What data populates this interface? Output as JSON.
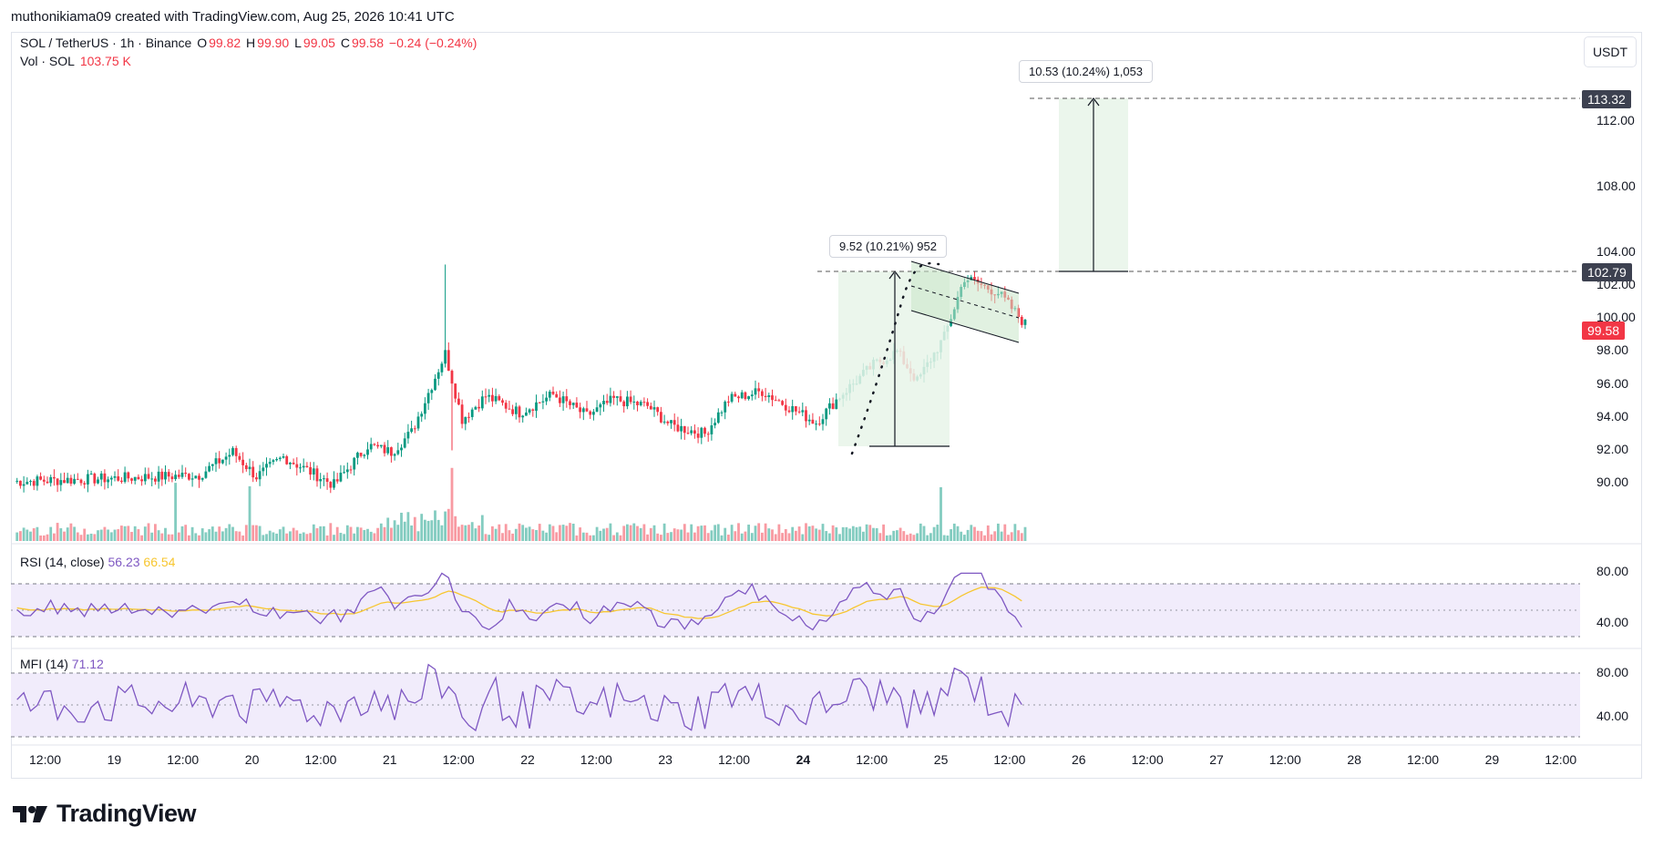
{
  "header": {
    "created_by": "muthonikiama09 created with TradingView.com, Aug 25, 2026 10:41 UTC"
  },
  "toolbar": {
    "currency": "USDT"
  },
  "legend": {
    "symbol": "SOL / TetherUS · 1h · Binance",
    "open_label": "O",
    "open": "99.82",
    "high_label": "H",
    "high": "99.90",
    "low_label": "L",
    "low": "99.05",
    "close_label": "C",
    "close": "99.58",
    "change": "−0.24 (−0.24%)",
    "vol_label": "Vol · SOL",
    "vol": "103.75 K"
  },
  "colors": {
    "up": "#089981",
    "down": "#f23645",
    "rsi": "#7e57c2",
    "rsi_ma": "#f7c62f",
    "measure_fill": "#e8f5e9",
    "channel": "#81c784"
  },
  "measure_boxes": [
    {
      "label": "9.52 (10.21%) 952"
    },
    {
      "label": "10.53 (10.24%) 1,053"
    }
  ],
  "price_tags": {
    "target": "113.32",
    "resistance": "102.79",
    "last": "99.58"
  },
  "rsi": {
    "title": "RSI (14, close)",
    "value": "56.23",
    "ma_value": "66.54"
  },
  "mfi": {
    "title": "MFI (14)",
    "value": "71.12"
  },
  "branding": {
    "name": "TradingView"
  },
  "chart_data": {
    "type": "candlestick",
    "price_axis": {
      "ticks": [
        "112.00",
        "108.00",
        "104.00",
        "102.00",
        "100.00",
        "98.00",
        "96.00",
        "94.00",
        "92.00",
        "90.00"
      ],
      "range": [
        88.5,
        114.5
      ]
    },
    "rsi_axis": {
      "ticks": [
        "80.00",
        "40.00"
      ],
      "bands": [
        70,
        30
      ]
    },
    "mfi_axis": {
      "ticks": [
        "80.00",
        "40.00"
      ],
      "bands": [
        80,
        20
      ]
    },
    "x_labels": [
      "12:00",
      "19",
      "12:00",
      "20",
      "12:00",
      "21",
      "12:00",
      "22",
      "12:00",
      "23",
      "12:00",
      "24",
      "12:00",
      "25",
      "12:00",
      "26",
      "12:00",
      "27",
      "12:00",
      "28",
      "12:00",
      "29",
      "12:00"
    ],
    "measure_1": {
      "from": 93.27,
      "to": 102.79,
      "change": 9.52,
      "percent": 10.21
    },
    "measure_2": {
      "from": 102.79,
      "to": 113.32,
      "change": 10.53,
      "percent": 10.24
    },
    "last_price": 99.58
  }
}
